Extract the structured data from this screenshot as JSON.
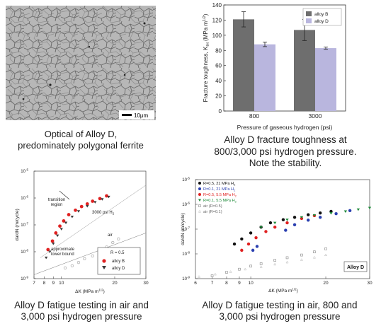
{
  "micrograph": {
    "scale_bar_label": "10μm",
    "caption_line1": "Optical of Alloy D,",
    "caption_line2": "predominately polygonal ferrite"
  },
  "toughness": {
    "caption_line1": "Alloy D fracture toughness at",
    "caption_line2": "800/3,000 psi hydrogen pressure.",
    "caption_line3": "Note the stability."
  },
  "fatigue_air": {
    "caption_line1": "Alloy D fatigue testing in air and",
    "caption_line2": "3,000 psi hydrogen pressure",
    "annotation_transition_1": "transition",
    "annotation_transition_2": "region",
    "annotation_h2": "3000 psi H",
    "annotation_air": "air",
    "annotation_lb_1": "approximate",
    "annotation_lb_2": "lower bound",
    "legend_r": "R = 0.5"
  },
  "fatigue_h2": {
    "caption_line1": "Alloy D fatigue testing in air, 800 and",
    "caption_line2": "3,000 psi hydrogen pressure",
    "tag": "Alloy D"
  },
  "chart_data": [
    {
      "type": "bar",
      "title": "",
      "xlabel": "Pressure of gaseous hydrogen (psi)",
      "ylabel": "Fracture toughness, K",
      "ylabel_sub": "IH",
      "ylabel_unit": " (MPa m",
      "ylabel_unit_sup": "1/2",
      "ylim": [
        0,
        140
      ],
      "yticks": [
        "0",
        "20",
        "40",
        "60",
        "80",
        "100",
        "120",
        "140"
      ],
      "categories": [
        "800",
        "3000"
      ],
      "series": [
        {
          "name": "alloy B",
          "color": "#6e6e6e",
          "values": [
            121,
            107
          ],
          "errors": [
            10,
            14
          ]
        },
        {
          "name": "alloy D",
          "color": "#b9b6de",
          "values": [
            88,
            83
          ],
          "errors": [
            3,
            1.5
          ]
        }
      ],
      "legend_position": "top-right",
      "grid": false
    },
    {
      "type": "scatter",
      "xlabel": "ΔK (MPa m",
      "xlabel_sup": "1/2",
      "ylabel": "da/dN (m/cycle)",
      "x_scale": "log",
      "y_scale": "log",
      "xlim": [
        7,
        30
      ],
      "ylim": [
        1e-09,
        1e-05
      ],
      "xticks": [
        "7",
        "8",
        "9",
        "10",
        "20",
        "30"
      ],
      "yticks": [
        "10",
        "10",
        "10",
        "10",
        "10"
      ],
      "ytick_exponents": [
        "-9",
        "-8",
        "-7",
        "-6",
        "-5"
      ],
      "legend_title": "R = 0.5",
      "legend_position": "bottom-right",
      "series": [
        {
          "name": "alloy B",
          "color": "#e02020",
          "points": [
            [
              8.4,
              1.2e-08
            ],
            [
              8.9,
              2.5e-08
            ],
            [
              9.3,
              5e-08
            ],
            [
              9.8,
              9e-08
            ],
            [
              10.3,
              1.4e-07
            ],
            [
              11,
              2.4e-07
            ],
            [
              12,
              3.5e-07
            ],
            [
              13,
              4.8e-07
            ],
            [
              14,
              6e-07
            ],
            [
              15,
              7.6e-07
            ],
            [
              16.5,
              9.5e-07
            ],
            [
              18,
              1.2e-06
            ]
          ]
        },
        {
          "name": "alloy D",
          "color": "#3a3a3a",
          "points": [
            [
              8.2,
              6e-09
            ],
            [
              8.6,
              1e-08
            ],
            [
              9,
              2e-08
            ],
            [
              9.5,
              4e-08
            ],
            [
              10,
              7e-08
            ],
            [
              10.6,
              1.2e-07
            ],
            [
              11.5,
              2e-07
            ],
            [
              12.5,
              3.2e-07
            ],
            [
              14,
              5e-07
            ],
            [
              15.5,
              7e-07
            ],
            [
              17,
              9e-07
            ],
            [
              18.5,
              1.1e-06
            ]
          ]
        },
        {
          "name": "air",
          "color": "#9a9a9a",
          "points": [
            [
              10.5,
              2.5e-09
            ],
            [
              11.5,
              3e-09
            ],
            [
              12.5,
              4e-09
            ],
            [
              13.5,
              5.5e-09
            ],
            [
              15,
              7e-09
            ],
            [
              16.5,
              1e-08
            ],
            [
              18,
              1.5e-08
            ],
            [
              19.5,
              2.2e-08
            ],
            [
              21,
              3e-08
            ]
          ]
        }
      ]
    },
    {
      "type": "scatter",
      "xlabel": "ΔK (MPa m",
      "xlabel_sup": "1/2",
      "ylabel": "da/dN (m/cycle)",
      "x_scale": "log",
      "y_scale": "log",
      "xlim": [
        6,
        30
      ],
      "ylim": [
        1e-09,
        1e-05
      ],
      "xticks": [
        "6",
        "7",
        "8",
        "9",
        "10",
        "20",
        "30"
      ],
      "yticks": [
        "10",
        "10",
        "10",
        "10",
        "10"
      ],
      "ytick_exponents": [
        "-9",
        "-8",
        "-7",
        "-6",
        "-5"
      ],
      "legend_position": "top-left",
      "series": [
        {
          "name": "R=0.5, 21 MPa H",
          "name_sub": "2",
          "color": "#111111",
          "points": [
            [
              8.6,
              2.5e-08
            ],
            [
              9.2,
              4e-08
            ],
            [
              10,
              7e-08
            ],
            [
              11,
              1.2e-07
            ],
            [
              12,
              1.8e-07
            ],
            [
              13.5,
              2.4e-07
            ],
            [
              15,
              3e-07
            ],
            [
              17,
              3.8e-07
            ],
            [
              19,
              4.5e-07
            ],
            [
              21,
              5.2e-07
            ]
          ]
        },
        {
          "name": "R=0.1, 21 MPa H",
          "name_sub": "2",
          "color": "#2a3fb0",
          "points": [
            [
              10.2,
              1.4e-08
            ],
            [
              10.6,
              2e-08
            ],
            [
              13.8,
              9e-08
            ],
            [
              15,
              1.5e-07
            ],
            [
              17,
              2.3e-07
            ],
            [
              19,
              3e-07
            ],
            [
              22,
              4.2e-07
            ],
            [
              25,
              5.6e-07
            ]
          ]
        },
        {
          "name": "R=0.5, 5.5 MPa H",
          "name_sub": "2",
          "color": "#e02020",
          "points": [
            [
              9.2,
              1.4e-08
            ],
            [
              9.8,
              2.5e-08
            ],
            [
              10.5,
              4.5e-08
            ],
            [
              11.5,
              8e-08
            ],
            [
              12.5,
              1.2e-07
            ],
            [
              14,
              1.8e-07
            ],
            [
              16,
              2.7e-07
            ],
            [
              18,
              3.5e-07
            ]
          ]
        },
        {
          "name": "R=0.1, 5.5 MPa H",
          "name_sub": "2",
          "color": "#1f8a3a",
          "points": [
            [
              11,
              1.2e-07
            ],
            [
              12.5,
              1.8e-07
            ],
            [
              14,
              2.4e-07
            ],
            [
              16,
              3e-07
            ],
            [
              18,
              3.6e-07
            ],
            [
              21,
              4.4e-07
            ],
            [
              24,
              5.2e-07
            ],
            [
              27,
              6.2e-07
            ],
            [
              30,
              7.2e-07
            ]
          ]
        },
        {
          "name": "air (R=0.5)",
          "color": "#888888",
          "points": [
            [
              7,
              1.3e-09
            ],
            [
              8,
              1.8e-09
            ],
            [
              9,
              2.4e-09
            ],
            [
              10,
              3.2e-09
            ],
            [
              11,
              4e-09
            ],
            [
              12.5,
              5.5e-09
            ],
            [
              14,
              7e-09
            ],
            [
              16,
              9e-09
            ],
            [
              18,
              1.2e-08
            ],
            [
              20,
              1.6e-08
            ]
          ]
        },
        {
          "name": "air (R=0.1)",
          "color": "#b8b8b8",
          "points": [
            [
              6.2,
              1.2e-09
            ],
            [
              7.2,
              1.5e-09
            ],
            [
              8.3,
              1.9e-09
            ],
            [
              9.5,
              2.4e-09
            ],
            [
              11,
              3e-09
            ],
            [
              12.5,
              3.8e-09
            ],
            [
              14,
              4.6e-09
            ],
            [
              16,
              5.8e-09
            ],
            [
              18,
              7.2e-09
            ],
            [
              20,
              9e-09
            ]
          ]
        }
      ]
    }
  ]
}
